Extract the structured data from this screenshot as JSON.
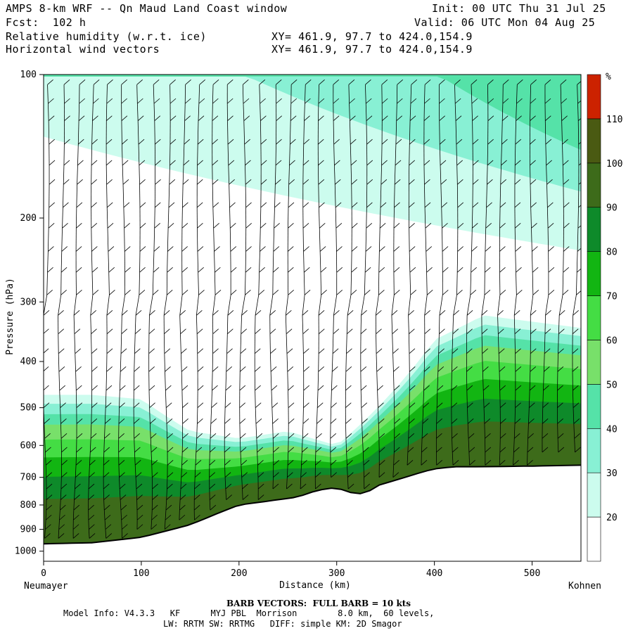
{
  "header": {
    "title": "AMPS 8-km WRF -- Qn Maud Land Coast window",
    "init": "Init: 00 UTC Thu 31 Jul 25",
    "fcst": "Fcst:  102 h",
    "valid": "Valid: 06 UTC Mon 04 Aug 25",
    "field1": "Relative humidity (w.r.t. ice)",
    "field2": "Horizontal wind vectors",
    "xy1": "XY= 461.9, 97.7 to 424.0,154.9",
    "xy2": "XY= 461.9, 97.7 to 424.0,154.9"
  },
  "chart_data": {
    "type": "heatmap",
    "title": "Relative humidity (w.r.t. ice)",
    "xlabel": "Distance (km)",
    "ylabel": "Pressure (hPa)",
    "xlim": [
      0,
      550
    ],
    "ylim": [
      1050,
      100
    ],
    "y_scale": "log",
    "x_ticks": [
      0,
      100,
      200,
      300,
      400,
      500
    ],
    "y_ticks": [
      100,
      200,
      300,
      400,
      500,
      600,
      700,
      800,
      900,
      1000
    ],
    "x_endpoints": {
      "left": "Neumayer",
      "right": "Kohnen"
    },
    "colorbar": {
      "unit": "%",
      "levels": [
        20,
        30,
        40,
        50,
        60,
        70,
        80,
        90,
        100,
        110
      ],
      "colors": [
        "#ffffff",
        "#ccfcee",
        "#88f0d4",
        "#55e2a8",
        "#78e06a",
        "#44dd44",
        "#12b512",
        "#0e8a2a",
        "#3d6b1a",
        "#4a5a12",
        "#cc2200"
      ]
    },
    "terrain_surface_hPa": {
      "x": [
        0,
        50,
        100,
        150,
        180,
        200,
        230,
        260,
        280,
        300,
        310,
        320,
        330,
        340,
        360,
        390,
        400,
        420,
        450,
        500,
        550
      ],
      "p": [
        965,
        960,
        935,
        880,
        830,
        800,
        785,
        770,
        745,
        735,
        750,
        758,
        757,
        730,
        710,
        680,
        672,
        665,
        665,
        663,
        660
      ]
    },
    "moist_layer_top_hPa": {
      "x": [
        0,
        50,
        100,
        150,
        200,
        250,
        300,
        350,
        400,
        450,
        500,
        550
      ],
      "p": [
        470,
        470,
        480,
        560,
        580,
        560,
        600,
        480,
        360,
        320,
        330,
        340
      ]
    },
    "wind_barbs": "full barb = 10 kts"
  },
  "footer": {
    "barb_note": "BARB VECTORS:  FULL BARB = 10 kts",
    "model_info": "Model Info: V4.3.3   KF      MYJ PBL  Morrison        8.0 km,  60 levels,",
    "physics": "LW: RRTM SW: RRTMG   DIFF: simple KM: 2D Smagor"
  }
}
